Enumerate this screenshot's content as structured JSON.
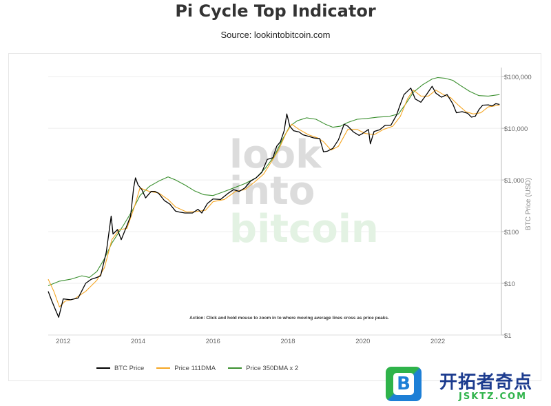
{
  "header": {
    "title": "Pi Cycle Top Indicator",
    "subtitle": "Source: lookintobitcoin.com"
  },
  "watermark": {
    "line1": "look",
    "line2": "into",
    "line3": "bitcoin"
  },
  "annotation": "Action: Click and hold mouse to zoom in to where moving average lines cross as price peaks.",
  "legend": {
    "items": [
      {
        "label": "BTC Price",
        "color": "#000000"
      },
      {
        "label": "Price 111DMA",
        "color": "#f5a623"
      },
      {
        "label": "Price 350DMA x 2",
        "color": "#3a8f2e"
      }
    ]
  },
  "badge": {
    "logo_letter": "B",
    "title": "开拓者奇点",
    "url": "JSKTZ.COM"
  },
  "chart_data": {
    "type": "line",
    "title": "Pi Cycle Top Indicator",
    "subtitle": "Source: lookintobitcoin.com",
    "xlabel": "",
    "ylabel": "BTC Price (USD)",
    "yscale": "log",
    "ylim": [
      1,
      150000
    ],
    "xlim": [
      2011.6,
      2023.7
    ],
    "x_ticks": [
      2012,
      2014,
      2016,
      2018,
      2020,
      2022
    ],
    "x_tick_labels": [
      "2012",
      "2014",
      "2016",
      "2018",
      "2020",
      "2022"
    ],
    "y_ticks": [
      1,
      10,
      100,
      1000,
      10000,
      100000
    ],
    "y_tick_labels": [
      "$1",
      "$10",
      "$100",
      "$1,000",
      "$10,000",
      "$100,000"
    ],
    "grid": "horizontal",
    "legend_position": "bottom-left",
    "series": [
      {
        "name": "BTC Price",
        "color": "#000000",
        "points": [
          [
            2011.6,
            7
          ],
          [
            2011.7,
            4.5
          ],
          [
            2011.8,
            3
          ],
          [
            2011.88,
            2.2
          ],
          [
            2011.95,
            3.5
          ],
          [
            2012.0,
            5
          ],
          [
            2012.2,
            4.8
          ],
          [
            2012.4,
            5.2
          ],
          [
            2012.6,
            10
          ],
          [
            2012.75,
            12
          ],
          [
            2012.9,
            13
          ],
          [
            2013.0,
            14
          ],
          [
            2013.15,
            40
          ],
          [
            2013.28,
            200
          ],
          [
            2013.33,
            90
          ],
          [
            2013.45,
            110
          ],
          [
            2013.55,
            70
          ],
          [
            2013.7,
            130
          ],
          [
            2013.8,
            200
          ],
          [
            2013.88,
            700
          ],
          [
            2013.93,
            1100
          ],
          [
            2014.0,
            800
          ],
          [
            2014.1,
            650
          ],
          [
            2014.2,
            450
          ],
          [
            2014.35,
            600
          ],
          [
            2014.45,
            600
          ],
          [
            2014.55,
            550
          ],
          [
            2014.7,
            400
          ],
          [
            2014.85,
            340
          ],
          [
            2015.0,
            250
          ],
          [
            2015.1,
            240
          ],
          [
            2015.25,
            230
          ],
          [
            2015.45,
            230
          ],
          [
            2015.6,
            270
          ],
          [
            2015.7,
            230
          ],
          [
            2015.85,
            350
          ],
          [
            2016.0,
            430
          ],
          [
            2016.2,
            420
          ],
          [
            2016.4,
            550
          ],
          [
            2016.55,
            650
          ],
          [
            2016.7,
            600
          ],
          [
            2016.85,
            700
          ],
          [
            2017.0,
            950
          ],
          [
            2017.15,
            1100
          ],
          [
            2017.3,
            1400
          ],
          [
            2017.45,
            2500
          ],
          [
            2017.6,
            2700
          ],
          [
            2017.7,
            4500
          ],
          [
            2017.8,
            5500
          ],
          [
            2017.9,
            9000
          ],
          [
            2017.97,
            19000
          ],
          [
            2018.05,
            11000
          ],
          [
            2018.15,
            9000
          ],
          [
            2018.3,
            8500
          ],
          [
            2018.4,
            7500
          ],
          [
            2018.55,
            7000
          ],
          [
            2018.7,
            6500
          ],
          [
            2018.85,
            6300
          ],
          [
            2018.95,
            3500
          ],
          [
            2019.05,
            3600
          ],
          [
            2019.2,
            4100
          ],
          [
            2019.35,
            6000
          ],
          [
            2019.5,
            12000
          ],
          [
            2019.6,
            11000
          ],
          [
            2019.75,
            8500
          ],
          [
            2019.9,
            7300
          ],
          [
            2020.0,
            8000
          ],
          [
            2020.15,
            9500
          ],
          [
            2020.2,
            5000
          ],
          [
            2020.3,
            8700
          ],
          [
            2020.45,
            9400
          ],
          [
            2020.6,
            11500
          ],
          [
            2020.75,
            11500
          ],
          [
            2020.9,
            18000
          ],
          [
            2021.0,
            29000
          ],
          [
            2021.1,
            45000
          ],
          [
            2021.28,
            60000
          ],
          [
            2021.4,
            37000
          ],
          [
            2021.55,
            32000
          ],
          [
            2021.7,
            45000
          ],
          [
            2021.85,
            65000
          ],
          [
            2021.95,
            48000
          ],
          [
            2022.1,
            40000
          ],
          [
            2022.25,
            45000
          ],
          [
            2022.4,
            30000
          ],
          [
            2022.5,
            20000
          ],
          [
            2022.65,
            21000
          ],
          [
            2022.8,
            19500
          ],
          [
            2022.9,
            16500
          ],
          [
            2023.0,
            17000
          ],
          [
            2023.1,
            23000
          ],
          [
            2023.2,
            28000
          ],
          [
            2023.35,
            28500
          ],
          [
            2023.45,
            27000
          ],
          [
            2023.55,
            30000
          ],
          [
            2023.65,
            29000
          ]
        ]
      },
      {
        "name": "Price 111DMA",
        "color": "#f5a623",
        "points": [
          [
            2011.6,
            12
          ],
          [
            2011.75,
            7
          ],
          [
            2011.9,
            3.5
          ],
          [
            2012.05,
            4.5
          ],
          [
            2012.3,
            5
          ],
          [
            2012.6,
            7
          ],
          [
            2012.9,
            11.5
          ],
          [
            2013.1,
            20
          ],
          [
            2013.3,
            70
          ],
          [
            2013.5,
            110
          ],
          [
            2013.7,
            115
          ],
          [
            2013.9,
            300
          ],
          [
            2014.05,
            700
          ],
          [
            2014.3,
            600
          ],
          [
            2014.55,
            560
          ],
          [
            2014.8,
            420
          ],
          [
            2015.0,
            300
          ],
          [
            2015.3,
            240
          ],
          [
            2015.55,
            245
          ],
          [
            2015.8,
            260
          ],
          [
            2016.0,
            380
          ],
          [
            2016.3,
            420
          ],
          [
            2016.6,
            600
          ],
          [
            2016.85,
            650
          ],
          [
            2017.1,
            900
          ],
          [
            2017.35,
            1300
          ],
          [
            2017.55,
            2200
          ],
          [
            2017.75,
            3800
          ],
          [
            2017.95,
            8000
          ],
          [
            2018.1,
            12000
          ],
          [
            2018.3,
            9500
          ],
          [
            2018.55,
            7500
          ],
          [
            2018.8,
            6500
          ],
          [
            2018.95,
            5500
          ],
          [
            2019.15,
            3800
          ],
          [
            2019.35,
            4500
          ],
          [
            2019.6,
            9500
          ],
          [
            2019.85,
            9500
          ],
          [
            2020.05,
            8000
          ],
          [
            2020.3,
            7500
          ],
          [
            2020.55,
            9500
          ],
          [
            2020.8,
            11000
          ],
          [
            2021.0,
            17000
          ],
          [
            2021.2,
            38000
          ],
          [
            2021.35,
            55000
          ],
          [
            2021.55,
            42000
          ],
          [
            2021.75,
            42000
          ],
          [
            2021.95,
            55000
          ],
          [
            2022.15,
            45000
          ],
          [
            2022.35,
            39000
          ],
          [
            2022.55,
            28000
          ],
          [
            2022.75,
            21000
          ],
          [
            2022.95,
            19000
          ],
          [
            2023.15,
            20000
          ],
          [
            2023.35,
            26000
          ],
          [
            2023.65,
            28000
          ]
        ]
      },
      {
        "name": "Price 350DMA x 2",
        "color": "#3a8f2e",
        "points": [
          [
            2011.6,
            9
          ],
          [
            2011.9,
            11
          ],
          [
            2012.2,
            12
          ],
          [
            2012.5,
            14
          ],
          [
            2012.7,
            13
          ],
          [
            2012.9,
            17
          ],
          [
            2013.1,
            30
          ],
          [
            2013.3,
            60
          ],
          [
            2013.6,
            130
          ],
          [
            2013.85,
            260
          ],
          [
            2014.05,
            500
          ],
          [
            2014.3,
            750
          ],
          [
            2014.55,
            950
          ],
          [
            2014.8,
            1150
          ],
          [
            2015.0,
            1000
          ],
          [
            2015.25,
            800
          ],
          [
            2015.5,
            620
          ],
          [
            2015.75,
            520
          ],
          [
            2016.0,
            500
          ],
          [
            2016.25,
            580
          ],
          [
            2016.55,
            700
          ],
          [
            2016.85,
            850
          ],
          [
            2017.15,
            1100
          ],
          [
            2017.4,
            1700
          ],
          [
            2017.65,
            3000
          ],
          [
            2017.85,
            6000
          ],
          [
            2018.05,
            11000
          ],
          [
            2018.25,
            14000
          ],
          [
            2018.5,
            16000
          ],
          [
            2018.75,
            15000
          ],
          [
            2019.0,
            12000
          ],
          [
            2019.2,
            10500
          ],
          [
            2019.4,
            11000
          ],
          [
            2019.6,
            13000
          ],
          [
            2019.85,
            15000
          ],
          [
            2020.1,
            15500
          ],
          [
            2020.4,
            16500
          ],
          [
            2020.7,
            17000
          ],
          [
            2020.95,
            19000
          ],
          [
            2021.15,
            30000
          ],
          [
            2021.35,
            50000
          ],
          [
            2021.6,
            70000
          ],
          [
            2021.85,
            90000
          ],
          [
            2022.0,
            96000
          ],
          [
            2022.2,
            93000
          ],
          [
            2022.4,
            85000
          ],
          [
            2022.6,
            68000
          ],
          [
            2022.85,
            52000
          ],
          [
            2023.1,
            43000
          ],
          [
            2023.35,
            42000
          ],
          [
            2023.65,
            45000
          ]
        ]
      }
    ]
  }
}
